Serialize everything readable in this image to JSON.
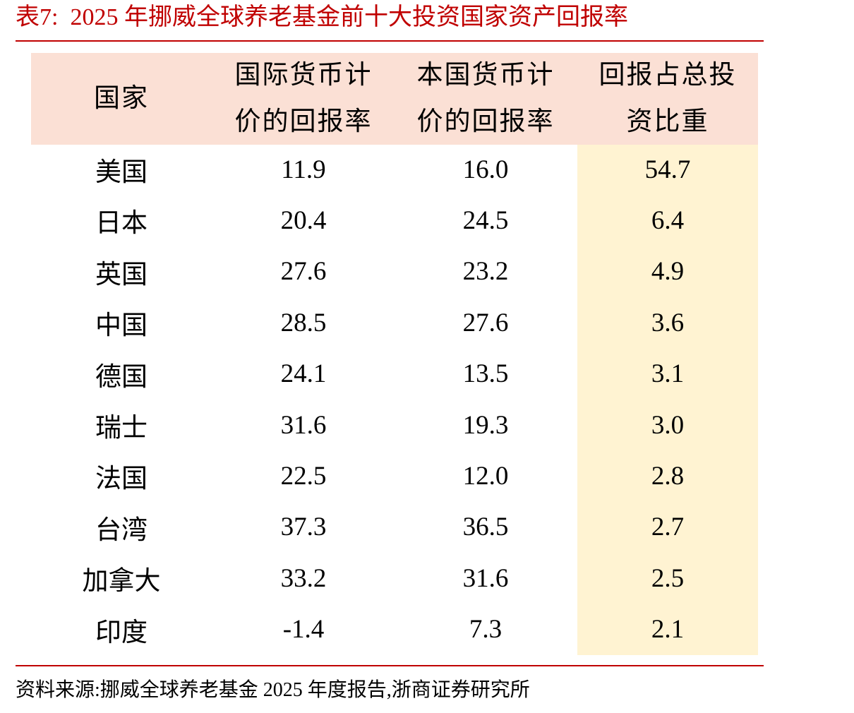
{
  "header": {
    "title": "表7:  2025 年挪威全球养老基金前十大投资国家资产回报率"
  },
  "table": {
    "columns": [
      "国家",
      "国际货币计价的回报率",
      "本国货币计价的回报率",
      "回报占总投资比重"
    ],
    "rows": [
      [
        "美国",
        "11.9",
        "16.0",
        "54.7"
      ],
      [
        "日本",
        "20.4",
        "24.5",
        "6.4"
      ],
      [
        "英国",
        "27.6",
        "23.2",
        "4.9"
      ],
      [
        "中国",
        "28.5",
        "27.6",
        "3.6"
      ],
      [
        "德国",
        "24.1",
        "13.5",
        "3.1"
      ],
      [
        "瑞士",
        "31.6",
        "19.3",
        "3.0"
      ],
      [
        "法国",
        "22.5",
        "12.0",
        "2.8"
      ],
      [
        "台湾",
        "37.3",
        "36.5",
        "2.7"
      ],
      [
        "加拿大",
        "33.2",
        "31.6",
        "2.5"
      ],
      [
        "印度",
        "-1.4",
        "7.3",
        "2.1"
      ]
    ]
  },
  "footer": {
    "source": "资料来源:挪威全球养老基金 2025 年度报告,浙商证券研究所"
  }
}
